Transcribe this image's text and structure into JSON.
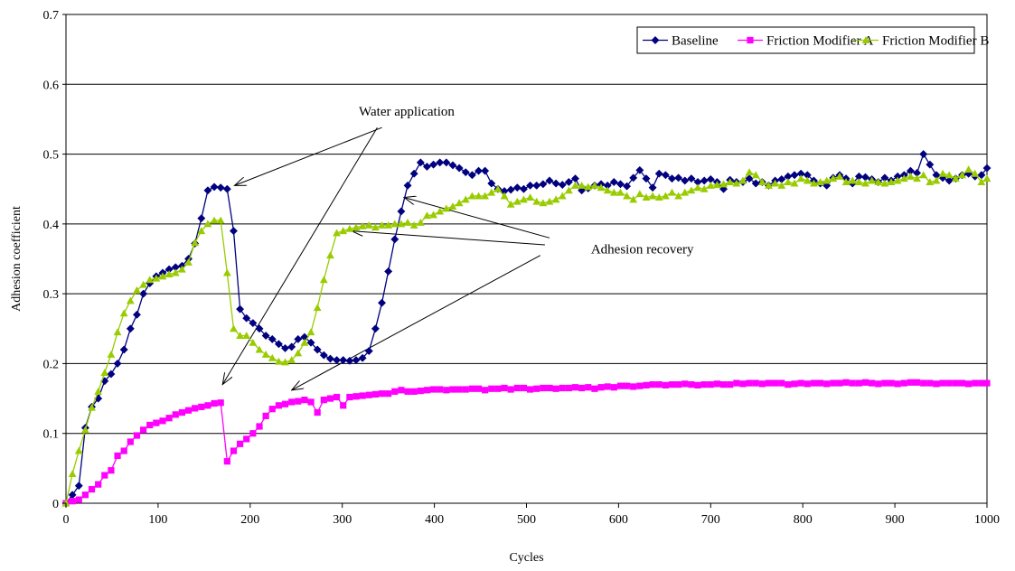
{
  "chart_data": {
    "type": "line",
    "title": "",
    "xlabel": "Cycles",
    "ylabel": "Adhesion coefficient",
    "xlim": [
      0,
      1000
    ],
    "ylim": [
      0,
      0.7
    ],
    "x_ticks": [
      0,
      100,
      200,
      300,
      400,
      500,
      600,
      700,
      800,
      900,
      1000
    ],
    "x_tick_labels": [
      "0",
      "100",
      "200",
      "300",
      "400",
      "500",
      "600",
      "700",
      "800",
      "900",
      "1000"
    ],
    "y_ticks": [
      0,
      0.1,
      0.2,
      0.3,
      0.4,
      0.5,
      0.6,
      0.7
    ],
    "y_tick_labels": [
      "0",
      "0.1",
      "0.2",
      "0.3",
      "0.4",
      "0.5",
      "0.6",
      "0.7"
    ],
    "grid": "horizontal",
    "legend_position": "top-right",
    "series": [
      {
        "name": "Baseline",
        "color": "#000080",
        "marker": "diamond",
        "x": [
          0,
          7,
          14,
          21,
          28,
          35,
          42,
          49,
          56,
          63,
          70,
          77,
          84,
          91,
          98,
          105,
          112,
          119,
          126,
          133,
          140,
          147,
          154,
          161,
          168,
          175,
          182,
          189,
          196,
          203,
          210,
          217,
          224,
          231,
          238,
          245,
          252,
          259,
          266,
          273,
          280,
          287,
          294,
          301,
          308,
          315,
          322,
          329,
          336,
          343,
          350,
          357,
          364,
          371,
          378,
          385,
          392,
          399,
          406,
          413,
          420,
          427,
          434,
          441,
          448,
          455,
          462,
          469,
          476,
          483,
          490,
          497,
          504,
          511,
          518,
          525,
          532,
          539,
          546,
          553,
          560,
          567,
          574,
          581,
          588,
          595,
          602,
          609,
          616,
          623,
          630,
          637,
          644,
          651,
          658,
          665,
          672,
          679,
          686,
          693,
          700,
          707,
          714,
          721,
          728,
          735,
          742,
          749,
          756,
          763,
          770,
          777,
          784,
          791,
          798,
          805,
          812,
          819,
          826,
          833,
          840,
          847,
          854,
          861,
          868,
          875,
          882,
          889,
          896,
          903,
          910,
          917,
          924,
          931,
          938,
          945,
          952,
          959,
          966,
          973,
          980,
          987,
          994,
          1000
        ],
        "y": [
          0.0,
          0.012,
          0.025,
          0.108,
          0.138,
          0.15,
          0.175,
          0.185,
          0.2,
          0.22,
          0.25,
          0.27,
          0.3,
          0.315,
          0.325,
          0.33,
          0.335,
          0.338,
          0.34,
          0.35,
          0.372,
          0.408,
          0.448,
          0.453,
          0.452,
          0.45,
          0.39,
          0.278,
          0.265,
          0.258,
          0.25,
          0.24,
          0.235,
          0.228,
          0.222,
          0.224,
          0.235,
          0.238,
          0.23,
          0.22,
          0.212,
          0.207,
          0.205,
          0.205,
          0.204,
          0.205,
          0.208,
          0.218,
          0.25,
          0.287,
          0.332,
          0.378,
          0.418,
          0.455,
          0.472,
          0.488,
          0.482,
          0.485,
          0.488,
          0.488,
          0.484,
          0.48,
          0.474,
          0.47,
          0.476,
          0.476,
          0.458,
          0.45,
          0.447,
          0.449,
          0.452,
          0.45,
          0.455,
          0.455,
          0.457,
          0.462,
          0.458,
          0.456,
          0.46,
          0.465,
          0.448,
          0.451,
          0.455,
          0.457,
          0.455,
          0.46,
          0.457,
          0.454,
          0.466,
          0.477,
          0.465,
          0.452,
          0.472,
          0.47,
          0.465,
          0.466,
          0.462,
          0.465,
          0.46,
          0.462,
          0.464,
          0.46,
          0.45,
          0.463,
          0.46,
          0.46,
          0.465,
          0.458,
          0.46,
          0.455,
          0.462,
          0.464,
          0.468,
          0.47,
          0.472,
          0.47,
          0.462,
          0.458,
          0.455,
          0.466,
          0.47,
          0.465,
          0.458,
          0.468,
          0.467,
          0.464,
          0.46,
          0.466,
          0.462,
          0.468,
          0.47,
          0.476,
          0.473,
          0.5,
          0.485,
          0.47,
          0.466,
          0.462,
          0.465,
          0.47,
          0.472,
          0.468,
          0.47,
          0.48
        ]
      },
      {
        "name": "Friction Modifier A",
        "color": "#ff00ff",
        "marker": "square",
        "x": [
          0,
          7,
          14,
          21,
          28,
          35,
          42,
          49,
          56,
          63,
          70,
          77,
          84,
          91,
          98,
          105,
          112,
          119,
          126,
          133,
          140,
          147,
          154,
          161,
          168,
          175,
          182,
          189,
          196,
          203,
          210,
          217,
          224,
          231,
          238,
          245,
          252,
          259,
          266,
          273,
          280,
          287,
          294,
          301,
          308,
          315,
          322,
          329,
          336,
          343,
          350,
          357,
          364,
          371,
          378,
          385,
          392,
          399,
          406,
          413,
          420,
          427,
          434,
          441,
          448,
          455,
          462,
          469,
          476,
          483,
          490,
          497,
          504,
          511,
          518,
          525,
          532,
          539,
          546,
          553,
          560,
          567,
          574,
          581,
          588,
          595,
          602,
          609,
          616,
          623,
          630,
          637,
          644,
          651,
          658,
          665,
          672,
          679,
          686,
          693,
          700,
          707,
          714,
          721,
          728,
          735,
          742,
          749,
          756,
          763,
          770,
          777,
          784,
          791,
          798,
          805,
          812,
          819,
          826,
          833,
          840,
          847,
          854,
          861,
          868,
          875,
          882,
          889,
          896,
          903,
          910,
          917,
          924,
          931,
          938,
          945,
          952,
          959,
          966,
          973,
          980,
          987,
          994,
          1000
        ],
        "y": [
          0.0,
          0.003,
          0.005,
          0.012,
          0.02,
          0.027,
          0.04,
          0.047,
          0.068,
          0.075,
          0.088,
          0.097,
          0.105,
          0.112,
          0.115,
          0.118,
          0.122,
          0.127,
          0.13,
          0.133,
          0.136,
          0.138,
          0.14,
          0.143,
          0.144,
          0.06,
          0.075,
          0.085,
          0.092,
          0.1,
          0.11,
          0.125,
          0.135,
          0.14,
          0.142,
          0.145,
          0.146,
          0.148,
          0.145,
          0.13,
          0.148,
          0.15,
          0.152,
          0.14,
          0.152,
          0.153,
          0.154,
          0.155,
          0.156,
          0.157,
          0.157,
          0.16,
          0.162,
          0.16,
          0.16,
          0.161,
          0.162,
          0.163,
          0.163,
          0.162,
          0.163,
          0.163,
          0.163,
          0.164,
          0.164,
          0.162,
          0.164,
          0.164,
          0.165,
          0.163,
          0.165,
          0.165,
          0.163,
          0.164,
          0.165,
          0.165,
          0.164,
          0.165,
          0.165,
          0.166,
          0.165,
          0.166,
          0.164,
          0.166,
          0.167,
          0.166,
          0.168,
          0.168,
          0.167,
          0.168,
          0.169,
          0.17,
          0.17,
          0.169,
          0.17,
          0.17,
          0.171,
          0.17,
          0.169,
          0.17,
          0.17,
          0.171,
          0.17,
          0.17,
          0.172,
          0.171,
          0.172,
          0.172,
          0.171,
          0.172,
          0.172,
          0.172,
          0.17,
          0.171,
          0.172,
          0.171,
          0.172,
          0.172,
          0.171,
          0.172,
          0.172,
          0.173,
          0.172,
          0.172,
          0.173,
          0.172,
          0.171,
          0.172,
          0.172,
          0.171,
          0.172,
          0.173,
          0.173,
          0.172,
          0.172,
          0.171,
          0.172,
          0.172,
          0.172,
          0.172,
          0.171,
          0.172,
          0.172,
          0.172
        ]
      },
      {
        "name": "Friction Modifier B",
        "color": "#99cc00",
        "marker": "triangle",
        "x": [
          0,
          7,
          14,
          21,
          28,
          35,
          42,
          49,
          56,
          63,
          70,
          77,
          84,
          91,
          98,
          105,
          112,
          119,
          126,
          133,
          140,
          147,
          154,
          161,
          168,
          175,
          182,
          189,
          196,
          203,
          210,
          217,
          224,
          231,
          238,
          245,
          252,
          259,
          266,
          273,
          280,
          287,
          294,
          301,
          308,
          315,
          322,
          329,
          336,
          343,
          350,
          357,
          364,
          371,
          378,
          385,
          392,
          399,
          406,
          413,
          420,
          427,
          434,
          441,
          448,
          455,
          462,
          469,
          476,
          483,
          490,
          497,
          504,
          511,
          518,
          525,
          532,
          539,
          546,
          553,
          560,
          567,
          574,
          581,
          588,
          595,
          602,
          609,
          616,
          623,
          630,
          637,
          644,
          651,
          658,
          665,
          672,
          679,
          686,
          693,
          700,
          707,
          714,
          721,
          728,
          735,
          742,
          749,
          756,
          763,
          770,
          777,
          784,
          791,
          798,
          805,
          812,
          819,
          826,
          833,
          840,
          847,
          854,
          861,
          868,
          875,
          882,
          889,
          896,
          903,
          910,
          917,
          924,
          931,
          938,
          945,
          952,
          959,
          966,
          973,
          980,
          987,
          994,
          1000
        ],
        "y": [
          0.0,
          0.042,
          0.075,
          0.105,
          0.137,
          0.16,
          0.187,
          0.213,
          0.245,
          0.272,
          0.29,
          0.305,
          0.313,
          0.32,
          0.322,
          0.325,
          0.328,
          0.33,
          0.335,
          0.345,
          0.373,
          0.39,
          0.4,
          0.405,
          0.405,
          0.33,
          0.25,
          0.24,
          0.24,
          0.23,
          0.22,
          0.213,
          0.208,
          0.203,
          0.202,
          0.205,
          0.215,
          0.23,
          0.245,
          0.28,
          0.32,
          0.355,
          0.387,
          0.39,
          0.393,
          0.395,
          0.397,
          0.398,
          0.395,
          0.398,
          0.398,
          0.4,
          0.4,
          0.402,
          0.398,
          0.402,
          0.412,
          0.413,
          0.418,
          0.422,
          0.425,
          0.43,
          0.435,
          0.44,
          0.44,
          0.44,
          0.445,
          0.45,
          0.44,
          0.428,
          0.432,
          0.435,
          0.438,
          0.432,
          0.43,
          0.432,
          0.435,
          0.44,
          0.448,
          0.455,
          0.455,
          0.453,
          0.455,
          0.452,
          0.448,
          0.445,
          0.445,
          0.44,
          0.435,
          0.443,
          0.438,
          0.44,
          0.438,
          0.44,
          0.445,
          0.44,
          0.445,
          0.448,
          0.452,
          0.45,
          0.455,
          0.456,
          0.457,
          0.46,
          0.458,
          0.462,
          0.474,
          0.47,
          0.46,
          0.455,
          0.458,
          0.455,
          0.46,
          0.458,
          0.465,
          0.462,
          0.458,
          0.46,
          0.462,
          0.465,
          0.468,
          0.46,
          0.462,
          0.46,
          0.458,
          0.462,
          0.46,
          0.458,
          0.46,
          0.462,
          0.465,
          0.468,
          0.465,
          0.47,
          0.46,
          0.462,
          0.472,
          0.47,
          0.465,
          0.47,
          0.478,
          0.472,
          0.46,
          0.465
        ]
      }
    ],
    "annotations": [
      {
        "id": "water",
        "text": "Water application",
        "label_pos": [
          318,
          0.555
        ],
        "arrows": [
          {
            "from": [
              343,
              0.538
            ],
            "to": [
              183,
              0.455
            ]
          },
          {
            "from": [
              338,
              0.538
            ],
            "to": [
              170,
              0.17
            ]
          }
        ]
      },
      {
        "id": "recovery",
        "text": "Adhesion recovery",
        "label_pos": [
          570,
          0.358
        ],
        "arrows": [
          {
            "from": [
              525,
              0.38
            ],
            "to": [
              367,
              0.438
            ]
          },
          {
            "from": [
              520,
              0.37
            ],
            "to": [
              310,
              0.39
            ]
          },
          {
            "from": [
              515,
              0.355
            ],
            "to": [
              245,
              0.162
            ]
          }
        ]
      }
    ]
  }
}
